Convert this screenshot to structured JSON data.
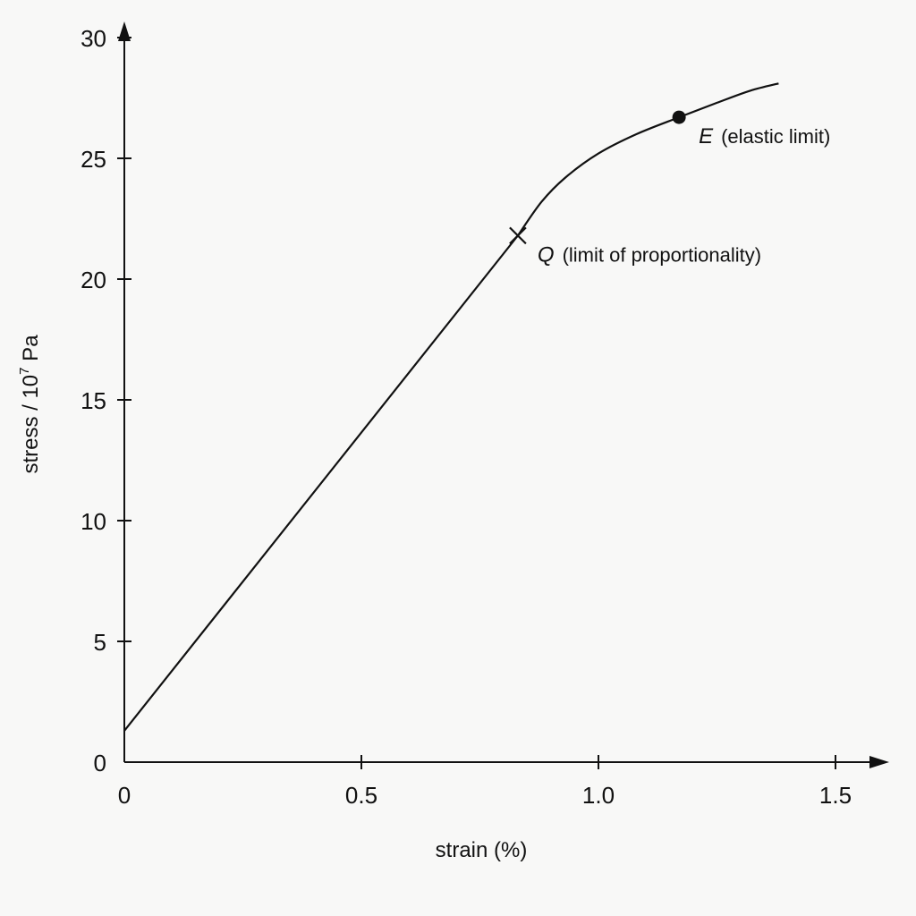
{
  "chart_data": {
    "type": "line",
    "xlabel": "strain (%)",
    "ylabel": {
      "base": "stress / 10",
      "exponent": "7",
      "unit": " Pa"
    },
    "xlim": [
      0,
      1.6
    ],
    "ylim": [
      0,
      32
    ],
    "x_ticks": [
      {
        "value": 0,
        "label": "0"
      },
      {
        "value": 0.5,
        "label": "0.5"
      },
      {
        "value": 1.0,
        "label": "1.0"
      },
      {
        "value": 1.5,
        "label": "1.5"
      }
    ],
    "y_ticks": [
      {
        "value": 0,
        "label": "0"
      },
      {
        "value": 5,
        "label": "5"
      },
      {
        "value": 10,
        "label": "10"
      },
      {
        "value": 15,
        "label": "15"
      },
      {
        "value": 20,
        "label": "20"
      },
      {
        "value": 25,
        "label": "25"
      },
      {
        "value": 30,
        "label": "30"
      }
    ],
    "grid": false,
    "series": [
      {
        "points": [
          {
            "x": 0,
            "y": 1.3
          },
          {
            "x": 0.83,
            "y": 21.8
          },
          {
            "x": 0.88,
            "y": 23.2
          },
          {
            "x": 0.93,
            "y": 24.2
          },
          {
            "x": 1.0,
            "y": 25.2
          },
          {
            "x": 1.08,
            "y": 26.0
          },
          {
            "x": 1.17,
            "y": 26.7
          },
          {
            "x": 1.25,
            "y": 27.3
          },
          {
            "x": 1.32,
            "y": 27.8
          },
          {
            "x": 1.38,
            "y": 28.1
          }
        ]
      }
    ],
    "annotations": [
      {
        "letter": "Q",
        "text": "(limit of proportionality)",
        "x": 0.83,
        "y": 21.8,
        "marker": "cross"
      },
      {
        "letter": "E",
        "text": "(elastic limit)",
        "x": 1.17,
        "y": 26.7,
        "marker": "dot"
      }
    ]
  }
}
